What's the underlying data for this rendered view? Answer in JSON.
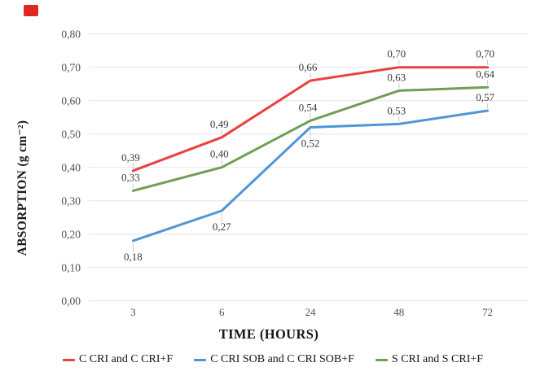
{
  "marker": {
    "color": "#e02620"
  },
  "chart_data": {
    "type": "line",
    "x": [
      3,
      6,
      24,
      48,
      72
    ],
    "x_tick_labels": [
      "3",
      "6",
      "24",
      "48",
      "72"
    ],
    "y_ticks": [
      "0,00",
      "0,10",
      "0,20",
      "0,30",
      "0,40",
      "0,50",
      "0,60",
      "0,70",
      "0,80"
    ],
    "ylim": [
      0,
      0.8
    ],
    "grid": true,
    "legend_position": "bottom",
    "title": "",
    "xlabel": "TIME (HOURS)",
    "ylabel": "ABSORPTION (g cm⁻²)",
    "colors": {
      "grid": "#e5e5e5",
      "leader": "#c9c9c9",
      "tick_text": "#4f4f4f",
      "label_text": "#3b3b3b"
    },
    "series": [
      {
        "name": "C CRI and C CRI+F",
        "color": "#ea403f",
        "values": [
          0.39,
          0.49,
          0.66,
          0.7,
          0.7
        ],
        "point_labels": [
          "0,39",
          "0,49",
          "0,66",
          "0,70",
          "0,70"
        ],
        "label_side": [
          "above",
          "above",
          "above",
          "above",
          "above"
        ]
      },
      {
        "name": "C CRI SOB and C CRI SOB+F",
        "color": "#4f96d7",
        "values": [
          0.18,
          0.27,
          0.52,
          0.53,
          0.57
        ],
        "point_labels": [
          "0,18",
          "0,27",
          "0,52",
          "0,53",
          "0,57"
        ],
        "label_side": [
          "below",
          "below",
          "below",
          "above",
          "above"
        ]
      },
      {
        "name": "S CRI and S CRI+F",
        "color": "#6f9e55",
        "values": [
          0.33,
          0.4,
          0.54,
          0.63,
          0.64
        ],
        "point_labels": [
          "0,33",
          "0,40",
          "0,54",
          "0,63",
          "0,64"
        ],
        "label_side": [
          "above",
          "above",
          "above",
          "above",
          "above"
        ]
      }
    ],
    "legend_order": [
      0,
      1,
      2
    ]
  }
}
